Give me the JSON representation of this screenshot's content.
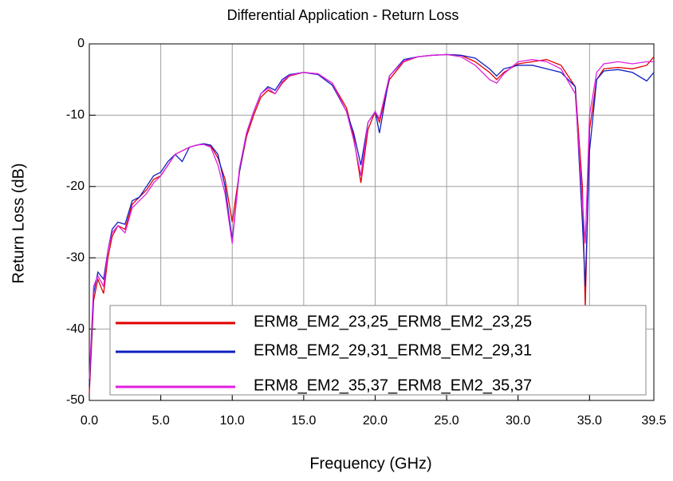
{
  "chart_data": {
    "type": "line",
    "title": "Differential Application - Return Loss",
    "xlabel": "Frequency (GHz)",
    "ylabel": "Return Loss (dB)",
    "x": [
      0,
      0.3,
      0.6,
      1.0,
      1.3,
      1.6,
      2.0,
      2.5,
      3.0,
      3.5,
      4,
      4.5,
      5,
      5.5,
      6,
      6.5,
      7,
      7.5,
      8,
      8.5,
      9,
      9.5,
      10,
      10.5,
      11,
      11.5,
      12,
      12.5,
      13,
      13.5,
      14,
      15,
      16,
      17,
      18,
      18.5,
      19,
      19.5,
      20,
      20.3,
      21,
      22,
      23,
      24,
      25,
      26,
      27,
      28,
      28.5,
      29,
      30,
      31,
      32,
      33,
      34,
      34.5,
      34.7,
      35,
      35.5,
      36,
      37,
      38,
      39,
      39.5
    ],
    "series": [
      {
        "name": "ERM8_EM2_23,25_ERM8_EM2_23,25",
        "color": "#e00000",
        "values": [
          -49,
          -36,
          -33,
          -35,
          -30,
          -27,
          -25.5,
          -26,
          -22.5,
          -21.5,
          -20.5,
          -19,
          -18.5,
          -17,
          -15.5,
          -15,
          -14.5,
          -14.2,
          -14,
          -14.3,
          -16,
          -19,
          -25,
          -18,
          -13,
          -10,
          -7.5,
          -6.5,
          -7,
          -5.5,
          -4.5,
          -4,
          -4.2,
          -5.5,
          -9,
          -13,
          -19.5,
          -12,
          -9.5,
          -11,
          -5,
          -2.5,
          -1.8,
          -1.6,
          -1.5,
          -1.6,
          -2.5,
          -4,
          -5,
          -4,
          -2.8,
          -2.5,
          -2.2,
          -3,
          -6,
          -20,
          -37,
          -12,
          -5,
          -3.5,
          -3.3,
          -3.5,
          -3,
          -1.8
        ]
      },
      {
        "name": "ERM8_EM2_29,31_ERM8_EM2_29,31",
        "color": "#1020c0",
        "values": [
          -48,
          -35,
          -32,
          -33,
          -29,
          -26,
          -25,
          -25.3,
          -22,
          -21.5,
          -20,
          -18.5,
          -18,
          -16.5,
          -15.5,
          -16.5,
          -14.5,
          -14.2,
          -14,
          -14.2,
          -15.5,
          -20,
          -27.5,
          -18,
          -12.5,
          -9.5,
          -7,
          -6,
          -6.5,
          -5,
          -4.3,
          -4,
          -4.3,
          -5.8,
          -9.5,
          -12.5,
          -17,
          -11,
          -9.5,
          -12.5,
          -4.5,
          -2.2,
          -1.8,
          -1.6,
          -1.5,
          -1.6,
          -2,
          -3.5,
          -4.5,
          -3.5,
          -3,
          -3,
          -3.5,
          -4,
          -6,
          -25,
          -34,
          -15,
          -5,
          -3.8,
          -3.6,
          -4,
          -5.2,
          -4
        ]
      },
      {
        "name": "ERM8_EM2_35,37_ERM8_EM2_35,37",
        "color": "#e020e0",
        "values": [
          -47,
          -34,
          -32.5,
          -34,
          -29,
          -26.5,
          -25.5,
          -26.5,
          -23,
          -22,
          -21,
          -19.5,
          -18.5,
          -17,
          -15.5,
          -15,
          -14.5,
          -14.2,
          -14.1,
          -14.5,
          -17,
          -21,
          -28,
          -17.5,
          -12.5,
          -9.5,
          -7,
          -6.2,
          -7,
          -5.3,
          -4.4,
          -4,
          -4.2,
          -5.5,
          -9.5,
          -13.5,
          -18.5,
          -11,
          -9.5,
          -10.5,
          -4.5,
          -2.4,
          -1.8,
          -1.6,
          -1.5,
          -1.8,
          -3,
          -5,
          -5.5,
          -4.2,
          -2.5,
          -2.2,
          -2.5,
          -3.5,
          -7,
          -22,
          -28,
          -10,
          -4,
          -2.8,
          -2.5,
          -2.8,
          -2.5,
          -2.5
        ]
      }
    ],
    "xlim": [
      0,
      39.5
    ],
    "ylim": [
      -50,
      0
    ],
    "xticks": [
      {
        "value": 0,
        "label": "0.0"
      },
      {
        "value": 5,
        "label": "5.0"
      },
      {
        "value": 10,
        "label": "10.0"
      },
      {
        "value": 15,
        "label": "15.0"
      },
      {
        "value": 20,
        "label": "20.0"
      },
      {
        "value": 25,
        "label": "25.0"
      },
      {
        "value": 30,
        "label": "30.0"
      },
      {
        "value": 35,
        "label": "35.0"
      },
      {
        "value": 39.5,
        "label": "39.5"
      }
    ],
    "yticks": [
      0,
      -10,
      -20,
      -30,
      -40,
      -50
    ],
    "grid": true,
    "legend": "lower left"
  }
}
